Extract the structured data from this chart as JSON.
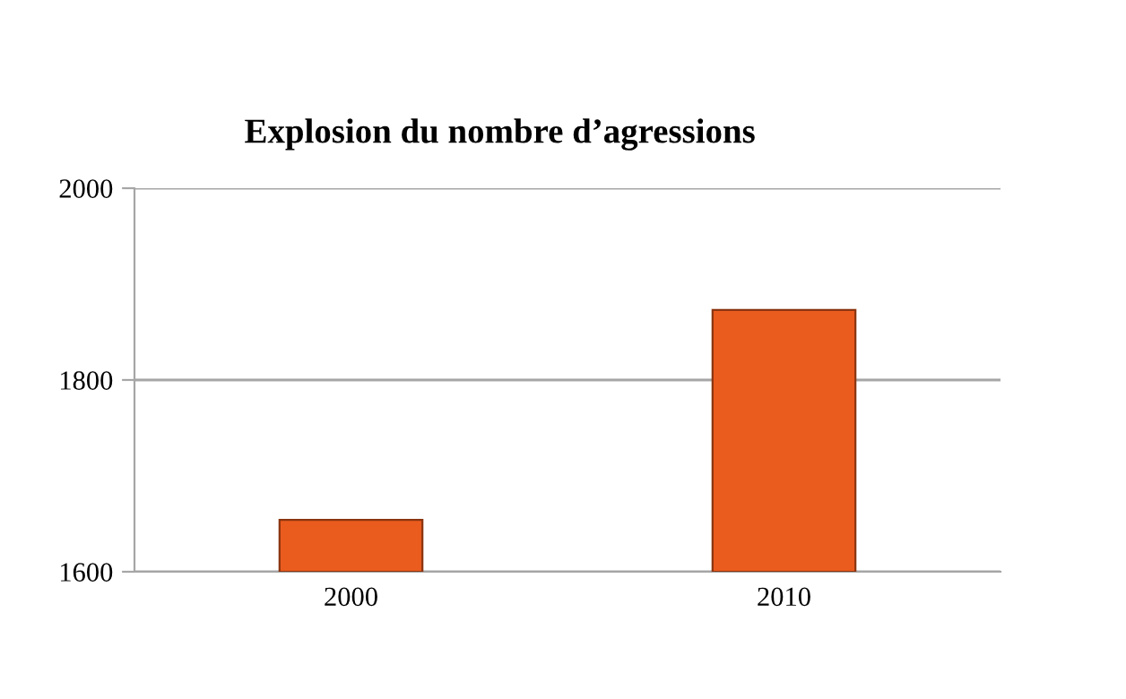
{
  "chart_data": {
    "type": "bar",
    "title": "Explosion du nombre d’agressions",
    "categories": [
      "2000",
      "2010"
    ],
    "values": [
      1654,
      1873
    ],
    "color": "#ea5b1e",
    "ylim": [
      1600,
      2000
    ],
    "yticks": [
      1600,
      1800,
      2000
    ],
    "grid": "y"
  }
}
